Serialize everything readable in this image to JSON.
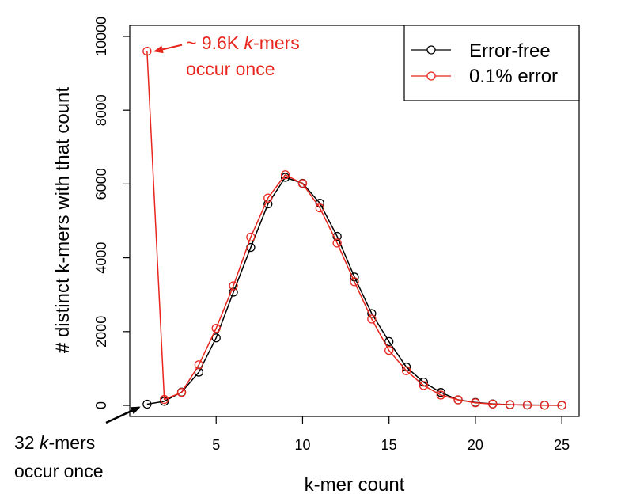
{
  "chart_data": {
    "type": "line",
    "title": "",
    "xlabel": "k-mer count",
    "ylabel": "# distinct k-mers with that count",
    "xlim": [
      0,
      26
    ],
    "ylim": [
      -300,
      10300
    ],
    "x_ticks": [
      5,
      10,
      15,
      20,
      25
    ],
    "y_ticks": [
      0,
      2000,
      4000,
      6000,
      8000,
      10000
    ],
    "x_tick_labels": [
      "5",
      "10",
      "15",
      "20",
      "25"
    ],
    "y_tick_labels": [
      "0",
      "2000",
      "4000",
      "6000",
      "8000",
      "10000"
    ],
    "grid": false,
    "legend_position": "top-right",
    "x": [
      1,
      2,
      3,
      4,
      5,
      6,
      7,
      8,
      9,
      10,
      11,
      12,
      13,
      14,
      15,
      16,
      17,
      18,
      19,
      20,
      21,
      22,
      23,
      24,
      25
    ],
    "series": [
      {
        "name": "Error-free",
        "color": "#000000",
        "values": [
          32,
          110,
          360,
          900,
          1830,
          3070,
          4280,
          5460,
          6180,
          6020,
          5480,
          4580,
          3480,
          2490,
          1730,
          1040,
          630,
          350,
          150,
          80,
          40,
          20,
          10,
          5,
          2
        ]
      },
      {
        "name": "0.1% error",
        "color": "#e8261e",
        "values": [
          9600,
          160,
          350,
          1100,
          2090,
          3240,
          4560,
          5620,
          6250,
          6010,
          5350,
          4400,
          3350,
          2340,
          1490,
          940,
          540,
          280,
          150,
          70,
          35,
          18,
          8,
          4,
          2
        ]
      }
    ],
    "annotations": {
      "red": {
        "prefix": "~ 9.6K ",
        "italic": "k",
        "suffix": "-mers",
        "line2": "occur once",
        "color": "#e8261e",
        "arrow_to": [
          1,
          9600
        ]
      },
      "black": {
        "prefix": "32 ",
        "italic": "k",
        "suffix": "-mers",
        "line2": "occur once",
        "color": "#000000",
        "arrow_to": [
          1,
          32
        ]
      }
    }
  }
}
